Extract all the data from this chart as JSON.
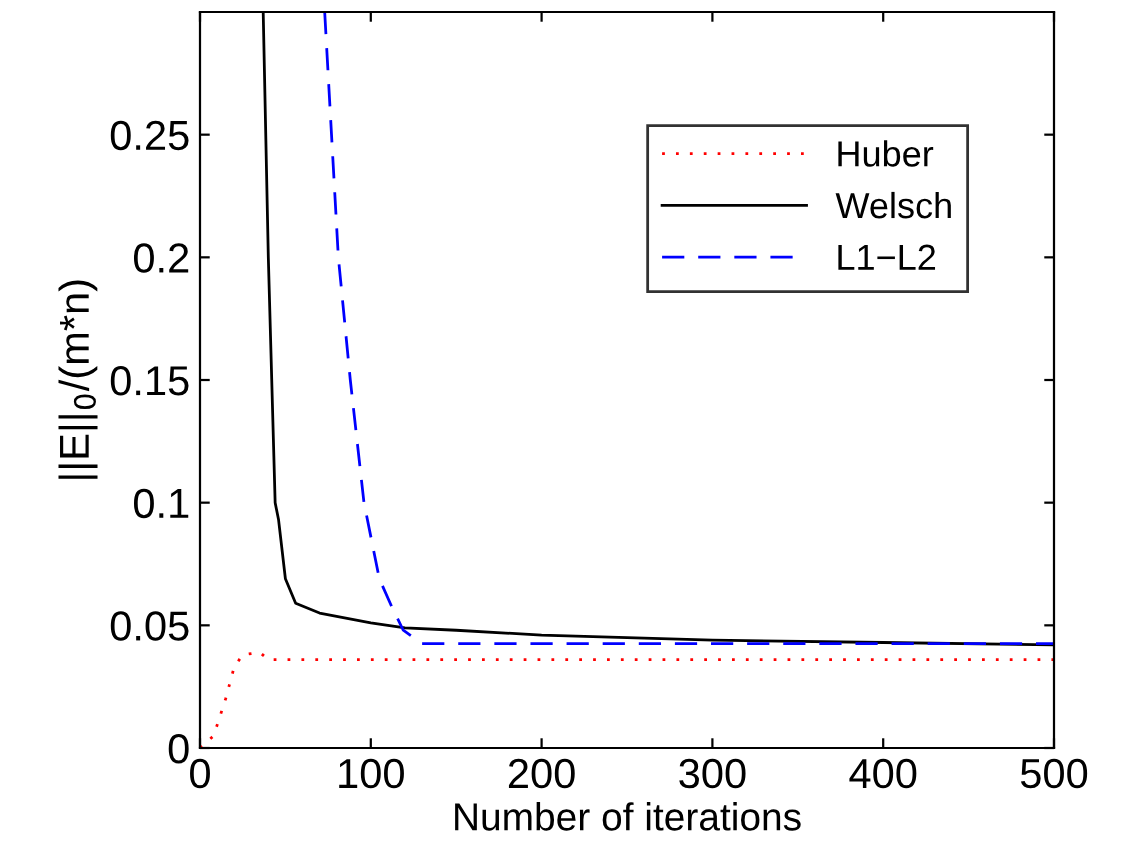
{
  "chart_data": {
    "type": "line",
    "xlabel": "Number of iterations",
    "ylabel": "||E||$_{0}$/(m*n)",
    "xlim": [
      0,
      500
    ],
    "ylim": [
      0,
      0.3
    ],
    "xticks": [
      0,
      100,
      200,
      300,
      400,
      500
    ],
    "yticks": [
      0,
      0.05,
      0.1,
      0.15,
      0.2,
      0.25
    ],
    "grid": false,
    "legend": "top right",
    "series": [
      {
        "name": "Huber",
        "color": "#ff0000",
        "line_style": "dotted",
        "x": [
          0,
          8,
          15,
          20,
          25,
          35,
          40,
          100,
          200,
          300,
          400,
          500
        ],
        "values": [
          0,
          0.005,
          0.02,
          0.033,
          0.038,
          0.039,
          0.036,
          0.036,
          0.036,
          0.036,
          0.036,
          0.036
        ]
      },
      {
        "name": "Welsch",
        "color": "#000000",
        "line_style": "solid",
        "x": [
          37,
          40,
          44,
          46,
          50,
          56,
          70,
          100,
          120,
          150,
          200,
          300,
          400,
          500
        ],
        "values": [
          0.3,
          0.2,
          0.1,
          0.093,
          0.069,
          0.059,
          0.055,
          0.051,
          0.049,
          0.048,
          0.046,
          0.044,
          0.043,
          0.042
        ]
      },
      {
        "name": "L1−L2",
        "color": "#0000ff",
        "line_style": "dashed",
        "x": [
          73,
          77,
          81,
          88,
          96,
          105,
          112,
          119,
          130,
          200,
          300,
          400,
          500
        ],
        "values": [
          0.3,
          0.25,
          0.2,
          0.15,
          0.1,
          0.069,
          0.058,
          0.048,
          0.0425,
          0.0425,
          0.0425,
          0.0425,
          0.0425
        ]
      }
    ]
  }
}
